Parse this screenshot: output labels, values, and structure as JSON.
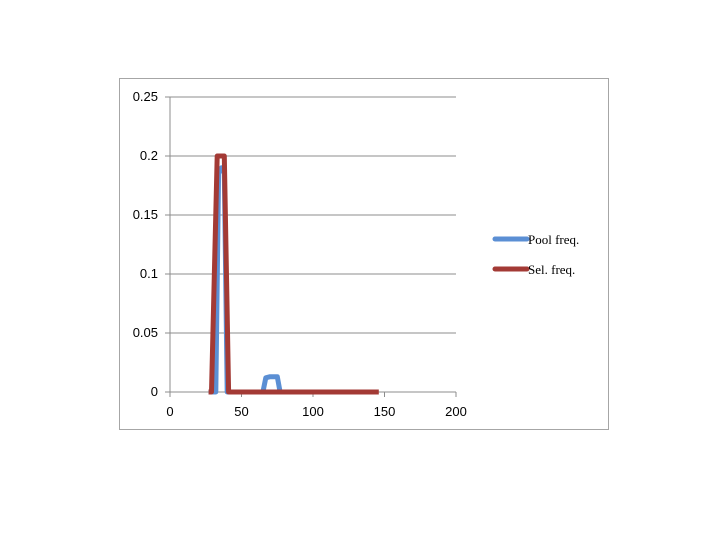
{
  "chart_data": {
    "type": "line",
    "xlim": [
      0,
      200
    ],
    "ylim": [
      0,
      0.25
    ],
    "x_ticks": [
      "0",
      "50",
      "100",
      "150",
      "200"
    ],
    "y_ticks": [
      "0",
      "0.05",
      "0.1",
      "0.15",
      "0.2",
      "0.25"
    ],
    "grid": "horizontal",
    "legend": "right",
    "series": [
      {
        "name": "Pool freq.",
        "color": "#5b8fd4",
        "x": [
          27,
          32,
          34,
          36,
          38,
          40,
          42,
          45,
          60,
          65,
          67,
          70,
          75,
          77,
          80,
          90,
          100,
          110,
          120,
          130,
          140,
          145
        ],
        "y": [
          0,
          0,
          0.185,
          0.19,
          0.186,
          0,
          0,
          0,
          0,
          0,
          0.012,
          0.013,
          0.013,
          0,
          0,
          0,
          0,
          0,
          0,
          0,
          0,
          0
        ]
      },
      {
        "name": "Sel. freq.",
        "color": "#a33a35",
        "x": [
          27,
          29,
          33,
          38,
          41,
          43,
          50,
          60,
          70,
          80,
          90,
          100,
          110,
          120,
          130,
          140,
          146
        ],
        "y": [
          0,
          0,
          0.2,
          0.2,
          0,
          0,
          0,
          0,
          0,
          0,
          0,
          0,
          0,
          0,
          0,
          0,
          0
        ]
      }
    ]
  }
}
